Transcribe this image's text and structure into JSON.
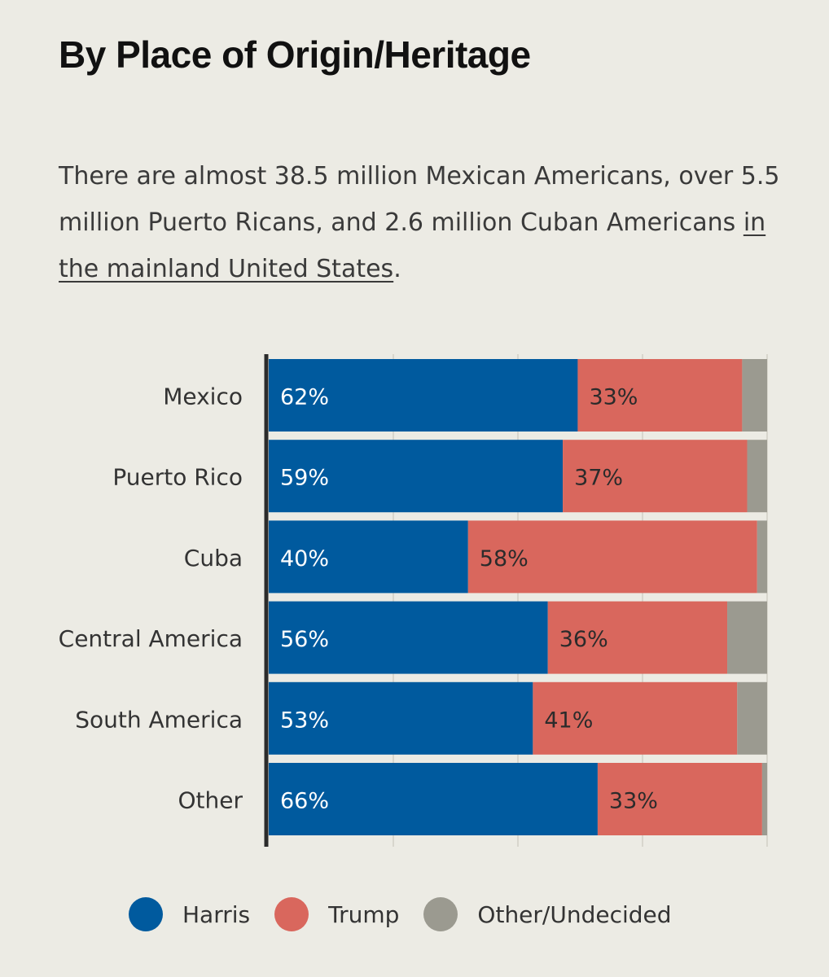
{
  "title": "By Place of Origin/Heritage",
  "description": {
    "text": "There are almost 38.5 million Mexican Americans, over 5.5 million Puerto Ricans, and 2.6 million Cuban Americans ",
    "link_text": "in the mainland United States",
    "suffix": "."
  },
  "colors": {
    "harris": "#005a9e",
    "trump": "#d9675d",
    "other": "#9b9a90",
    "background": "#ecebe4",
    "grid": "#d8d6cd",
    "axis": "#2b2b2b"
  },
  "chart_data": {
    "type": "bar",
    "orientation": "horizontal",
    "stacked": true,
    "categories": [
      "Mexico",
      "Puerto Rico",
      "Cuba",
      "Central America",
      "South America",
      "Other"
    ],
    "series": [
      {
        "name": "Harris",
        "values": [
          62,
          59,
          40,
          56,
          53,
          66
        ],
        "labels": [
          "62%",
          "59%",
          "40%",
          "56%",
          "53%",
          "66%"
        ]
      },
      {
        "name": "Trump",
        "values": [
          33,
          37,
          58,
          36,
          41,
          33
        ],
        "labels": [
          "33%",
          "37%",
          "58%",
          "36%",
          "41%",
          "33%"
        ]
      },
      {
        "name": "Other/Undecided",
        "values": [
          5,
          4,
          2,
          8,
          6,
          1
        ]
      }
    ],
    "xlim": [
      0,
      100
    ],
    "grid": true,
    "legend_position": "bottom"
  },
  "legend": [
    {
      "label": "Harris",
      "color_key": "harris"
    },
    {
      "label": "Trump",
      "color_key": "trump"
    },
    {
      "label": "Other/Undecided",
      "color_key": "other"
    }
  ]
}
